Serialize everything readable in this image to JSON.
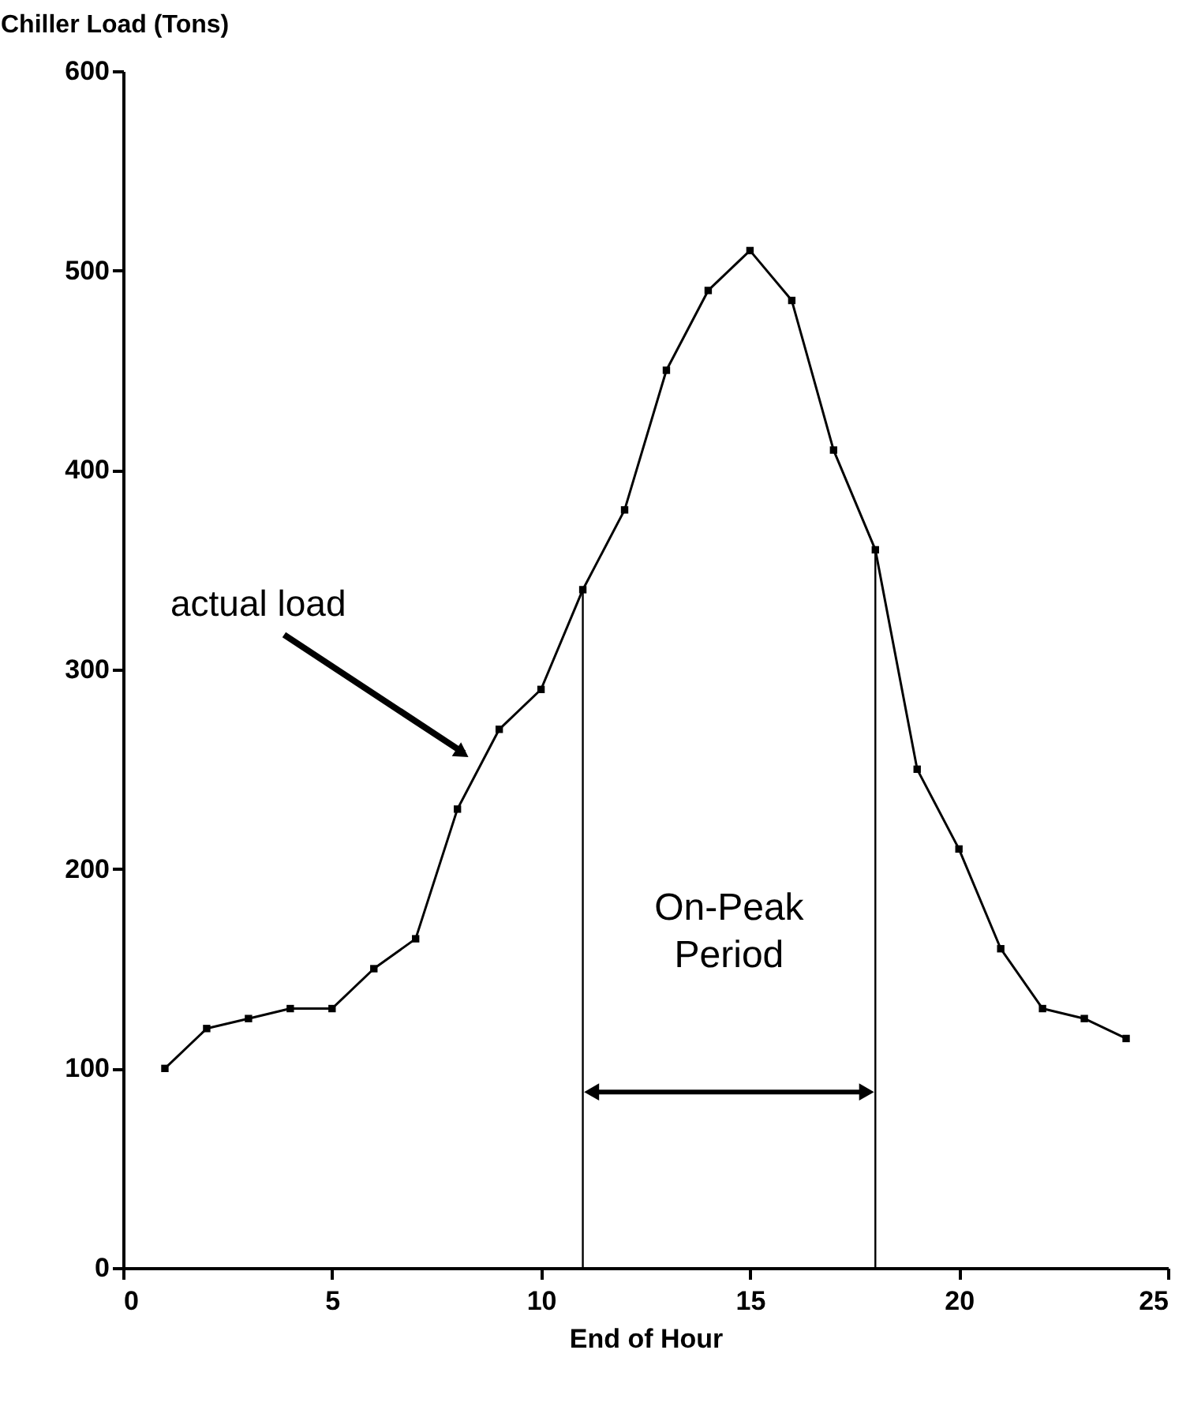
{
  "chart_data": {
    "type": "line",
    "ylabel": "Chiller Load (Tons)",
    "xlabel": "End of Hour",
    "x": [
      1,
      2,
      3,
      4,
      5,
      6,
      7,
      8,
      9,
      10,
      11,
      12,
      13,
      14,
      15,
      16,
      17,
      18,
      19,
      20,
      21,
      22,
      23,
      24
    ],
    "series": [
      {
        "color": "#000000",
        "values": [
          100,
          120,
          125,
          130,
          130,
          150,
          165,
          230,
          270,
          290,
          340,
          380,
          450,
          490,
          510,
          485,
          410,
          360,
          250,
          210,
          160,
          130,
          125,
          115
        ]
      }
    ],
    "xlim": [
      0,
      25
    ],
    "ylim": [
      0,
      600
    ],
    "xticks": [
      0,
      5,
      10,
      15,
      20,
      25
    ],
    "yticks": [
      0,
      100,
      200,
      300,
      400,
      500,
      600
    ],
    "marker": "square",
    "line_style": "solid",
    "grid": false,
    "ref_lines": [
      {
        "axis": "x",
        "value": 11
      },
      {
        "axis": "x",
        "value": 18
      }
    ],
    "annotations": [
      "actual load",
      "On-Peak Period"
    ]
  }
}
